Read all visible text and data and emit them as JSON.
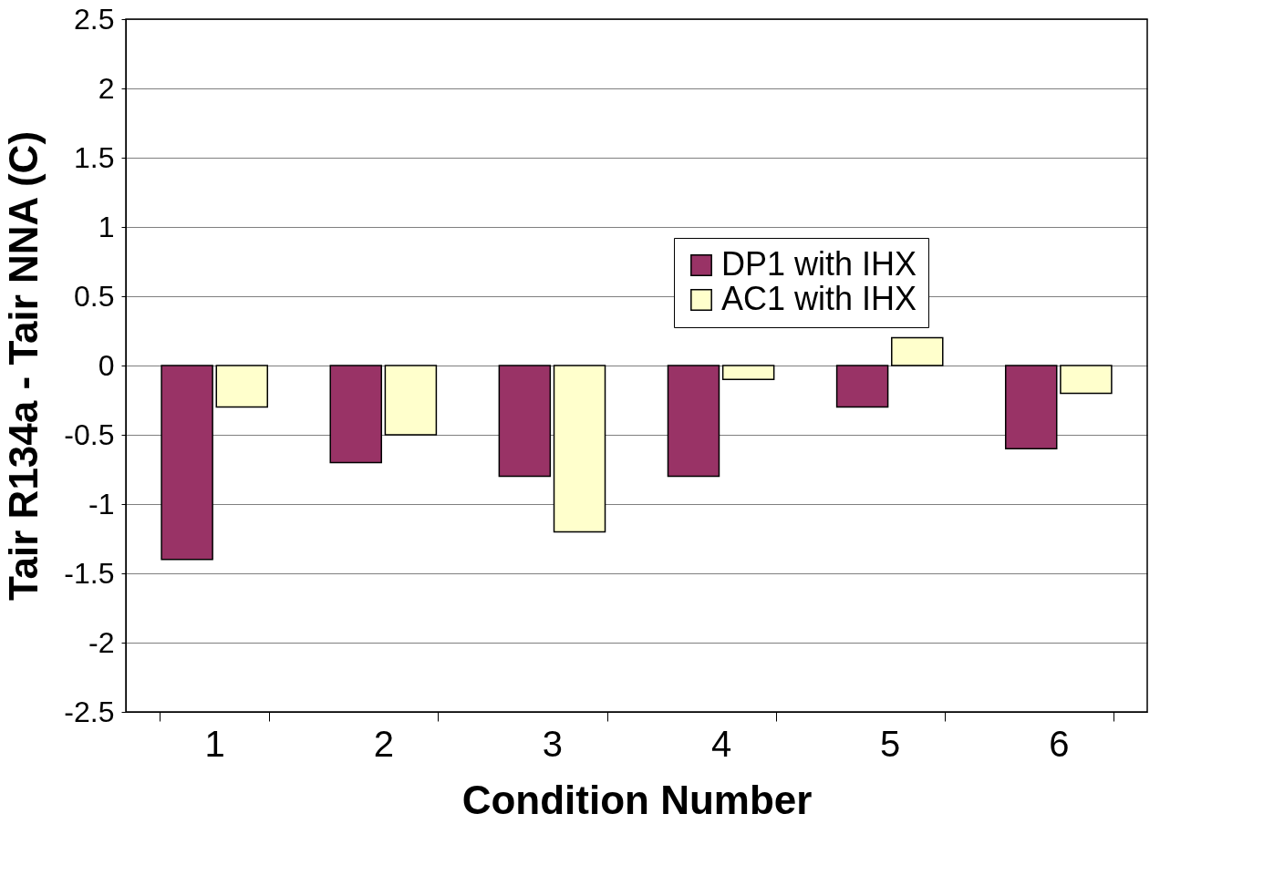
{
  "chart_data": {
    "type": "bar",
    "xlabel": "Condition Number",
    "ylabel": "Tair R134a - Tair NNA (C)",
    "categories": [
      "1",
      "2",
      "3",
      "4",
      "5",
      "6"
    ],
    "series": [
      {
        "name": "DP1 with IHX",
        "color": "#993366",
        "values": [
          -1.4,
          -0.7,
          -0.8,
          -0.8,
          -0.3,
          -0.6
        ]
      },
      {
        "name": "AC1 with IHX",
        "color": "#ffffcc",
        "values": [
          -0.3,
          -0.5,
          -1.2,
          -0.1,
          0.2,
          -0.2
        ]
      }
    ],
    "ylim": [
      -2.5,
      2.5
    ],
    "yticks": [
      -2.5,
      -2,
      -1.5,
      -1,
      -0.5,
      0,
      0.5,
      1,
      1.5,
      2,
      2.5
    ],
    "grid": "y",
    "legend": "top right"
  }
}
